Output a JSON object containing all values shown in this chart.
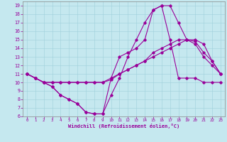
{
  "xlabel": "Windchill (Refroidissement éolien,°C)",
  "background_color": "#c5e8ef",
  "line_color": "#990099",
  "xlim": [
    -0.5,
    23.5
  ],
  "ylim": [
    6,
    19.5
  ],
  "xticks": [
    0,
    1,
    2,
    3,
    4,
    5,
    6,
    7,
    8,
    9,
    10,
    11,
    12,
    13,
    14,
    15,
    16,
    17,
    18,
    19,
    20,
    21,
    22,
    23
  ],
  "yticks": [
    6,
    7,
    8,
    9,
    10,
    11,
    12,
    13,
    14,
    15,
    16,
    17,
    18,
    19
  ],
  "series": [
    [
      11,
      10.5,
      10,
      9.5,
      8.5,
      8.0,
      7.5,
      6.5,
      6.3,
      6.3,
      8.5,
      10.5,
      13,
      15,
      17,
      18.5,
      19,
      19,
      17,
      15,
      14.5,
      13,
      12,
      11
    ],
    [
      11,
      10.5,
      10,
      10,
      10,
      10,
      10,
      10,
      10,
      10,
      10.5,
      11,
      11.5,
      12,
      12.5,
      13.5,
      14,
      14.5,
      15,
      15,
      15,
      14.5,
      12.5,
      11
    ],
    [
      11,
      10.5,
      10,
      10,
      10,
      10,
      10,
      10,
      10,
      10,
      10.3,
      11,
      11.5,
      12,
      12.5,
      13,
      13.5,
      14,
      14.5,
      15,
      14.8,
      13.5,
      12.5,
      11
    ],
    [
      11,
      10.5,
      10,
      9.5,
      8.5,
      8.0,
      7.5,
      6.5,
      6.3,
      6.3,
      10.5,
      13,
      13.5,
      14,
      15,
      18.5,
      19,
      15,
      10.5,
      10.5,
      10.5,
      10,
      10,
      10
    ]
  ]
}
